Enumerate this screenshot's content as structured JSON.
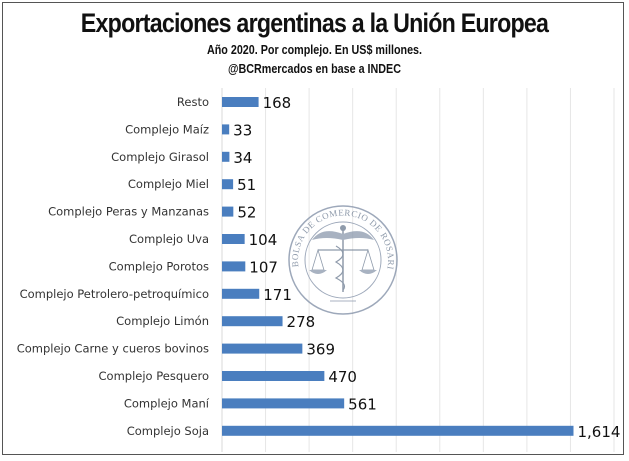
{
  "chart_data": {
    "type": "bar",
    "orientation": "horizontal",
    "title": "Exportaciones argentinas a la Unión Europea",
    "subtitle": "Año 2020. Por complejo. En US$ millones.",
    "source": "@BCRmercados en base a INDEC",
    "categories": [
      "Resto",
      "Complejo Maíz",
      "Complejo Girasol",
      "Complejo Miel",
      "Complejo Peras y Manzanas",
      "Complejo Uva",
      "Complejo Porotos",
      "Complejo Petrolero-petroquímico",
      "Complejo Limón",
      "Complejo Carne y cueros bovinos",
      "Complejo Pesquero",
      "Complejo Maní",
      "Complejo Soja"
    ],
    "values": [
      168,
      33,
      34,
      51,
      52,
      104,
      107,
      171,
      278,
      369,
      470,
      561,
      1614
    ],
    "value_labels": [
      "168",
      "33",
      "34",
      "51",
      "52",
      "104",
      "107",
      "171",
      "278",
      "369",
      "470",
      "561",
      "1,614"
    ],
    "xlim": [
      0,
      1800
    ],
    "grid_step": 200,
    "grid": true,
    "bar_color": "#4a7ebf",
    "xlabel": "",
    "ylabel": ""
  },
  "watermark": {
    "text": "BOLSA DE COMERCIO DE ROSARIO"
  }
}
